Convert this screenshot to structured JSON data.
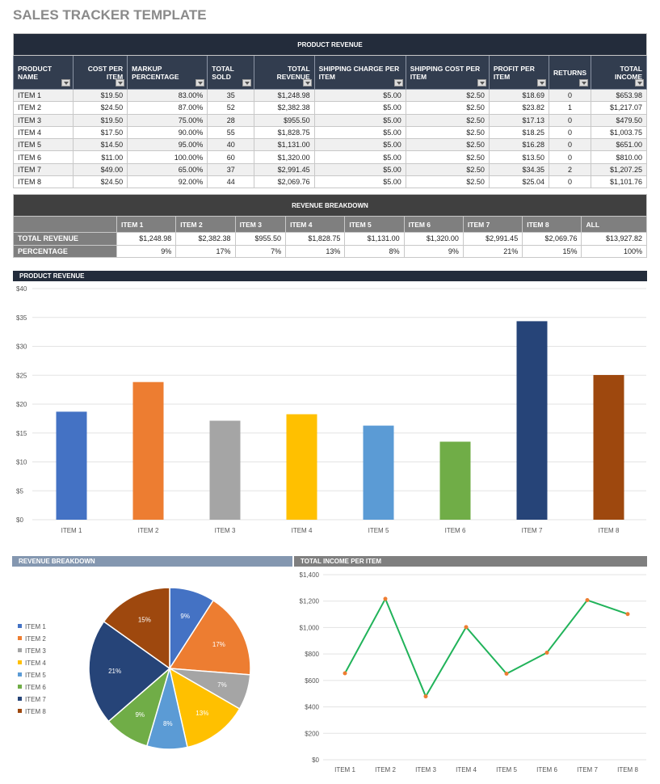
{
  "title": "SALES TRACKER TEMPLATE",
  "product_revenue": {
    "band": "PRODUCT REVENUE",
    "headers": [
      "PRODUCT NAME",
      "COST PER ITEM",
      "MARKUP PERCENTAGE",
      "TOTAL SOLD",
      "TOTAL REVENUE",
      "SHIPPING CHARGE PER ITEM",
      "SHIPPING COST PER ITEM",
      "PROFIT PER ITEM",
      "RETURNS",
      "TOTAL INCOME"
    ],
    "rows": [
      [
        "ITEM 1",
        "$19.50",
        "83.00%",
        "35",
        "$1,248.98",
        "$5.00",
        "$2.50",
        "$18.69",
        "0",
        "$653.98"
      ],
      [
        "ITEM 2",
        "$24.50",
        "87.00%",
        "52",
        "$2,382.38",
        "$5.00",
        "$2.50",
        "$23.82",
        "1",
        "$1,217.07"
      ],
      [
        "ITEM 3",
        "$19.50",
        "75.00%",
        "28",
        "$955.50",
        "$5.00",
        "$2.50",
        "$17.13",
        "0",
        "$479.50"
      ],
      [
        "ITEM 4",
        "$17.50",
        "90.00%",
        "55",
        "$1,828.75",
        "$5.00",
        "$2.50",
        "$18.25",
        "0",
        "$1,003.75"
      ],
      [
        "ITEM 5",
        "$14.50",
        "95.00%",
        "40",
        "$1,131.00",
        "$5.00",
        "$2.50",
        "$16.28",
        "0",
        "$651.00"
      ],
      [
        "ITEM 6",
        "$11.00",
        "100.00%",
        "60",
        "$1,320.00",
        "$5.00",
        "$2.50",
        "$13.50",
        "0",
        "$810.00"
      ],
      [
        "ITEM 7",
        "$49.00",
        "65.00%",
        "37",
        "$2,991.45",
        "$5.00",
        "$2.50",
        "$34.35",
        "2",
        "$1,207.25"
      ],
      [
        "ITEM 8",
        "$24.50",
        "92.00%",
        "44",
        "$2,069.76",
        "$5.00",
        "$2.50",
        "$25.04",
        "0",
        "$1,101.76"
      ]
    ]
  },
  "revenue_breakdown": {
    "band": "REVENUE BREAKDOWN",
    "headers": [
      "",
      "ITEM 1",
      "ITEM 2",
      "ITEM 3",
      "ITEM 4",
      "ITEM 5",
      "ITEM 6",
      "ITEM 7",
      "ITEM 8",
      "ALL"
    ],
    "rows": [
      [
        "TOTAL REVENUE",
        "$1,248.98",
        "$2,382.38",
        "$955.50",
        "$1,828.75",
        "$1,131.00",
        "$1,320.00",
        "$2,991.45",
        "$2,069.76",
        "$13,927.82"
      ],
      [
        "PERCENTAGE",
        "9%",
        "17%",
        "7%",
        "13%",
        "8%",
        "9%",
        "21%",
        "15%",
        "100%"
      ]
    ]
  },
  "chart_data": [
    {
      "type": "bar",
      "title": "PRODUCT REVENUE",
      "categories": [
        "ITEM 1",
        "ITEM 2",
        "ITEM 3",
        "ITEM 4",
        "ITEM 5",
        "ITEM 6",
        "ITEM 7",
        "ITEM 8"
      ],
      "values": [
        18.69,
        23.82,
        17.13,
        18.25,
        16.28,
        13.5,
        34.35,
        25.04
      ],
      "ylim": [
        0,
        40
      ],
      "yticks": [
        "$0",
        "$5",
        "$10",
        "$15",
        "$20",
        "$25",
        "$30",
        "$35",
        "$40"
      ],
      "grid": true,
      "colors": [
        "#4472C4",
        "#ED7D31",
        "#A5A5A5",
        "#FFC000",
        "#5B9BD5",
        "#70AD47",
        "#264478",
        "#9E480E"
      ]
    },
    {
      "type": "pie",
      "title": "REVENUE BREAKDOWN",
      "categories": [
        "ITEM 1",
        "ITEM 2",
        "ITEM 3",
        "ITEM 4",
        "ITEM 5",
        "ITEM 6",
        "ITEM 7",
        "ITEM 8"
      ],
      "values": [
        9,
        17,
        7,
        13,
        8,
        9,
        21,
        15
      ],
      "labels": [
        "9%",
        "17%",
        "7%",
        "13%",
        "8%",
        "9%",
        "21%",
        "15%"
      ],
      "legend": "left",
      "colors": [
        "#4472C4",
        "#ED7D31",
        "#A5A5A5",
        "#FFC000",
        "#5B9BD5",
        "#70AD47",
        "#264478",
        "#9E480E"
      ]
    },
    {
      "type": "line",
      "title": "TOTAL INCOME PER ITEM",
      "categories": [
        "ITEM 1",
        "ITEM 2",
        "ITEM 3",
        "ITEM 4",
        "ITEM 5",
        "ITEM 6",
        "ITEM 7",
        "ITEM 8"
      ],
      "values": [
        653.98,
        1217.07,
        479.5,
        1003.75,
        651.0,
        810.0,
        1207.25,
        1101.76
      ],
      "ylim": [
        0,
        1400
      ],
      "yticks": [
        "$0",
        "$200",
        "$400",
        "$600",
        "$800",
        "$1,000",
        "$1,200",
        "$1,400"
      ],
      "grid": true,
      "line_color": "#21B35A",
      "marker_color": "#ED7D31"
    }
  ]
}
